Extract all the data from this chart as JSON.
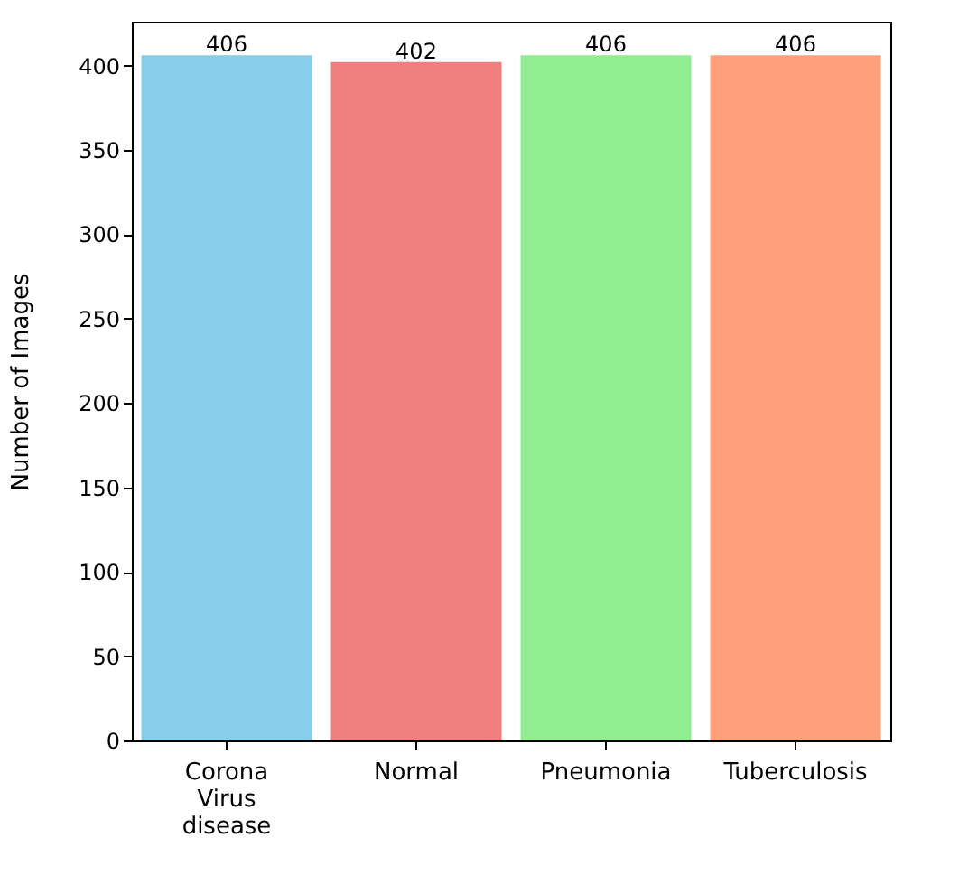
{
  "chart_data": {
    "type": "bar",
    "ylabel": "Number of Images",
    "categories": [
      "Corona Virus disease",
      "Normal",
      "Pneumonia",
      "Tuberculosis"
    ],
    "values": [
      406,
      402,
      406,
      406
    ],
    "colors": [
      "#87ceeb",
      "#f08080",
      "#90ee90",
      "#ffa07a"
    ],
    "ylim": [
      0,
      426
    ],
    "yticks": [
      0,
      50,
      100,
      150,
      200,
      250,
      300,
      350,
      400
    ],
    "data_labels": true,
    "grid": false
  }
}
